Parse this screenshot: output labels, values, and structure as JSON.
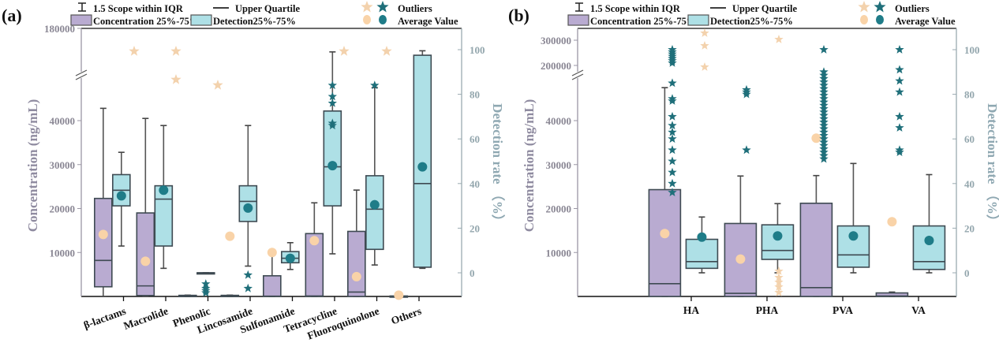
{
  "colors": {
    "conc_fill": "#b9abd1",
    "det_fill": "#aee0e6",
    "box_stroke": "#3e4a52",
    "conc_mean": "#f9d3a8",
    "conc_outlier": "#f3d2ad",
    "det_mean": "#1f7c88",
    "det_outlier": "#1f6f7a",
    "left_axis": "#9a96a4",
    "right_axis": "#9aaab0"
  },
  "legend": {
    "whisker": "1.5 Scope within IQR",
    "median": "Upper Quartile",
    "conc_box": "Concentration 25%-75%",
    "det_box": "Detection25%-75%",
    "outliers": "Outliers",
    "mean": "Average Value"
  },
  "chart_data": [
    {
      "panel": "(a)",
      "type": "box",
      "ylabel_left": "Concentration (ng/mL)",
      "ylabel_right": "Detection rate （%）",
      "left_axis": {
        "broken": true,
        "lower_range": [
          0,
          47000
        ],
        "lower_ticks": [
          10000,
          20000,
          30000,
          40000
        ],
        "upper_ticks": [
          180000
        ]
      },
      "right_axis": {
        "range": [
          -10,
          110
        ],
        "ticks": [
          0,
          20,
          40,
          60,
          80,
          100
        ]
      },
      "categories": [
        "β-lactams",
        "Macrolide",
        "Phenolic",
        "Lincosamide",
        "Sulfonamide",
        "Tetracycline",
        "Fluoroquinolone",
        "Others"
      ],
      "concentration": [
        {
          "q1": 2200,
          "median": 8200,
          "q3": 22300,
          "low": 0,
          "high": 42800,
          "mean": 14100,
          "outliers": [
            "top"
          ]
        },
        {
          "q1": 200,
          "median": 2400,
          "q3": 19000,
          "low": 0,
          "high": 40500,
          "mean": 8000,
          "outliers": [
            "top",
            "upper-mid"
          ]
        },
        {
          "q1": 0,
          "median": 100,
          "q3": 250,
          "low": 0,
          "high": 300,
          "mean": null,
          "outliers": [
            "upper-low"
          ]
        },
        {
          "q1": 0,
          "median": 100,
          "q3": 250,
          "low": 0,
          "high": 300,
          "mean": 13700,
          "outliers": []
        },
        {
          "q1": 0,
          "median": 50,
          "q3": 4700,
          "low": 0,
          "high": 9500,
          "mean": 10000,
          "outliers": []
        },
        {
          "q1": 0,
          "median": 100,
          "q3": 14300,
          "low": 0,
          "high": 21300,
          "mean": 12700,
          "outliers": [
            "top"
          ]
        },
        {
          "q1": 0,
          "median": 1000,
          "q3": 14800,
          "low": 0,
          "high": 24200,
          "mean": 4500,
          "outliers": [
            "top"
          ]
        },
        {
          "q1": 0,
          "median": 50,
          "q3": 100,
          "low": 0,
          "high": 150,
          "mean": 300,
          "outliers": []
        }
      ],
      "detection": [
        {
          "q1": 30,
          "median": 37,
          "q3": 44,
          "low": 12,
          "high": 54,
          "mean": 34.5,
          "outliers": []
        },
        {
          "q1": 12,
          "median": 33,
          "q3": 39,
          "low": 2,
          "high": 66,
          "mean": 37,
          "outliers": []
        },
        {
          "q1": 0,
          "median": 0,
          "q3": 0,
          "low": 0,
          "high": 0,
          "mean": null,
          "outliers": [
            -5,
            -7,
            -8,
            -9
          ]
        },
        {
          "q1": 23,
          "median": 32,
          "q3": 39,
          "low": 3,
          "high": 66,
          "mean": 29,
          "outliers": [
            -1,
            -7
          ]
        },
        {
          "q1": 4.5,
          "median": 6.5,
          "q3": 9.5,
          "low": 1.5,
          "high": 13.5,
          "mean": 6.5,
          "outliers": []
        },
        {
          "q1": 30,
          "median": 47.5,
          "q3": 72.5,
          "low": 8.5,
          "high": 99,
          "mean": 48,
          "outliers": [
            67,
            84,
            79,
            76,
            66
          ]
        },
        {
          "q1": 10.5,
          "median": 28.5,
          "q3": 43.5,
          "low": 3.5,
          "high": 83,
          "mean": 30.5,
          "outliers": [
            84
          ]
        },
        {
          "q1": 28.5,
          "median": 43.5,
          "q3": 51.5,
          "low": 12.5,
          "high": 79.5,
          "mean": 44.5,
          "outliers": []
        }
      ],
      "detection_others": {
        "q1": 2.5,
        "median": 40,
        "q3": 97.5,
        "low": 2,
        "high": 99.5,
        "mean": 47.5
      }
    },
    {
      "panel": "(b)",
      "type": "box",
      "ylabel_left": "Concentration (ng/mL)",
      "ylabel_right": "Detection rate （%）",
      "left_axis": {
        "broken": true,
        "lower_range": [
          0,
          47000
        ],
        "lower_ticks": [
          10000,
          20000,
          30000,
          40000
        ],
        "upper_ticks": [
          200000,
          300000
        ]
      },
      "right_axis": {
        "range": [
          -10,
          110
        ],
        "ticks": [
          0,
          20,
          40,
          60,
          80,
          100
        ]
      },
      "categories": [
        "HA",
        "PHA",
        "PVA",
        "VA"
      ],
      "concentration": [
        {
          "q1": 0,
          "median": 2900,
          "q3": 24300,
          "low": 0,
          "high": 47500,
          "mean": 14300
        },
        {
          "q1": 0,
          "median": 700,
          "q3": 16600,
          "low": 0,
          "high": 27400,
          "mean": 8500
        },
        {
          "q1": 0,
          "median": 2000,
          "q3": 21200,
          "low": 0,
          "high": 27500,
          "mean": 36000
        },
        {
          "q1": 0,
          "median": 100,
          "q3": 800,
          "low": 0,
          "high": 1000,
          "mean": 17000
        }
      ],
      "detection": [
        {
          "q1": 2,
          "median": 5,
          "q3": 15,
          "low": 0,
          "high": 25,
          "mean": 16
        },
        {
          "q1": 6,
          "median": 10,
          "q3": 21.5,
          "low": 0,
          "high": 31,
          "mean": 16.5
        },
        {
          "q1": 2.5,
          "median": 8,
          "q3": 21,
          "low": 0,
          "high": 49,
          "mean": 16.5
        },
        {
          "q1": 1.5,
          "median": 5,
          "q3": 21,
          "low": 0,
          "high": 44,
          "mean": 14.5
        }
      ]
    }
  ]
}
